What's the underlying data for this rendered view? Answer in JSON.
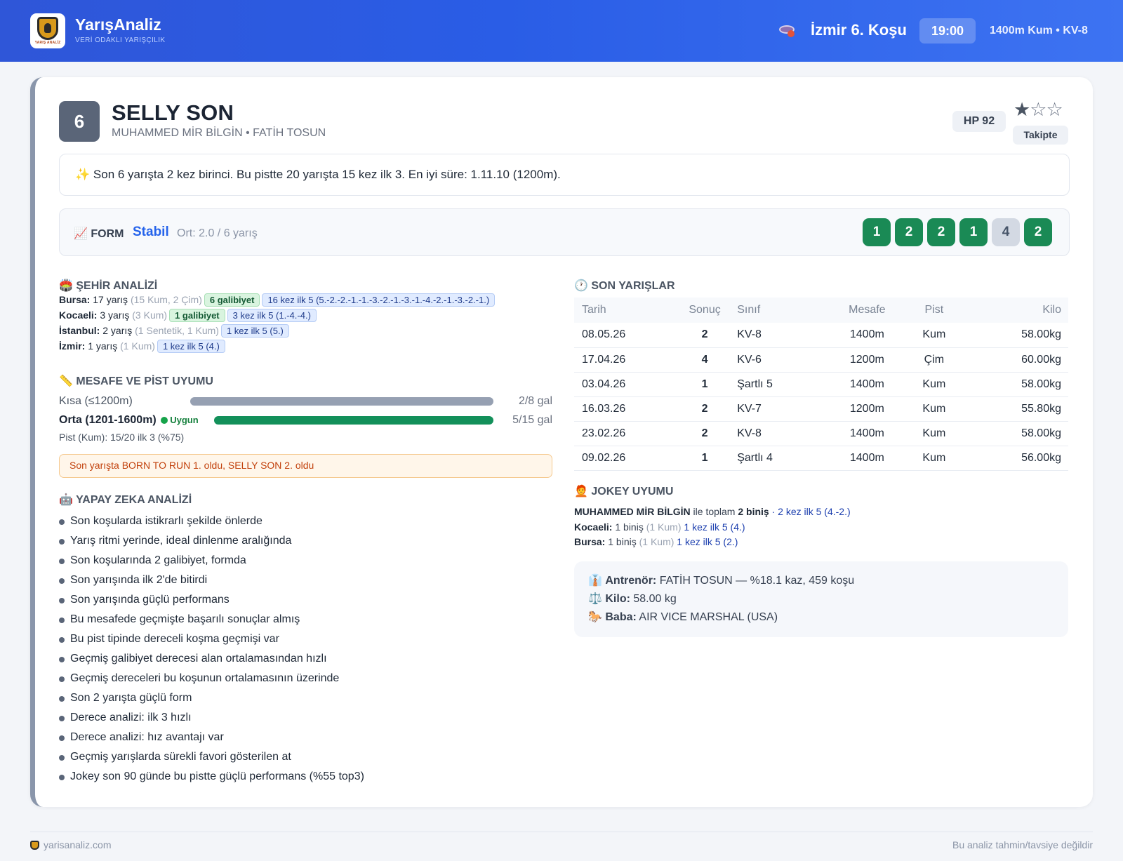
{
  "header": {
    "brand": "YarışAnaliz",
    "tagline": "VERİ ODAKLI YARIŞÇILIK",
    "logo_text": "YARIŞ ANALİZ",
    "race_title": "İzmir 6. Koşu",
    "time": "19:00",
    "race_meta": "1400m Kum • KV-8",
    "colors": {
      "accent": "#2f56d8"
    }
  },
  "horse": {
    "number": "6",
    "name": "SELLY SON",
    "subtitle": "MUHAMMED MİR BİLGİN • FATİH TOSUN",
    "hp": "HP 92",
    "rating_stars": 1,
    "rating_max": 3,
    "follow_label": "Takipte"
  },
  "summary": {
    "icon": "sparkles-icon",
    "text": "Son 6 yarışta 2 kez birinci. Bu pistte 20 yarışta 15 kez ilk 3. En iyi süre: 1.11.10 (1200m)."
  },
  "form": {
    "label": "FORM",
    "status": "Stabil",
    "avg": "Ort: 2.0 / 6 yarış",
    "results": [
      "1",
      "2",
      "2",
      "1",
      "4",
      "2"
    ]
  },
  "city_analysis": {
    "title": "ŞEHİR ANALİZİ",
    "rows": [
      {
        "city": "Bursa:",
        "races": "17 yarış",
        "detail": "(15 Kum, 2 Çim)",
        "wins": "6 galibiyet",
        "top5": "16 kez ilk 5 (5.-2.-2.-1.-1.-3.-2.-1.-3.-1.-4.-2.-1.-3.-2.-1.)"
      },
      {
        "city": "Kocaeli:",
        "races": "3 yarış",
        "detail": "(3 Kum)",
        "wins": "1 galibiyet",
        "top5": "3 kez ilk 5 (1.-4.-4.)"
      },
      {
        "city": "İstanbul:",
        "races": "2 yarış",
        "detail": "(1 Sentetik, 1 Kum)",
        "wins": "",
        "top5": "1 kez ilk 5 (5.)"
      },
      {
        "city": "İzmir:",
        "races": "1 yarış",
        "detail": "(1 Kum)",
        "wins": "",
        "top5": "1 kez ilk 5 (4.)"
      }
    ]
  },
  "distance": {
    "title": "MESAFE VE PİST UYUMU",
    "rows": [
      {
        "label": "Kısa (≤1200m)",
        "badge": "",
        "value": "2/8 gal",
        "fraction": 1.0
      },
      {
        "label": "Orta (1201-1600m)",
        "badge": "Uygun",
        "value": "5/15 gal",
        "fraction": 1.0
      }
    ],
    "pist": "Pist (Kum): 15/20 ilk 3 (%75)",
    "note": "Son yarışta BORN TO RUN 1. oldu, SELLY SON 2. oldu"
  },
  "ai": {
    "title": "YAPAY ZEKA ANALİZİ",
    "items": [
      "Son koşularda istikrarlı şekilde önlerde",
      "Yarış ritmi yerinde, ideal dinlenme aralığında",
      "Son koşularında 2 galibiyet, formda",
      "Son yarışında ilk 2'de bitirdi",
      "Son yarışında güçlü performans",
      "Bu mesafede geçmişte başarılı sonuçlar almış",
      "Bu pist tipinde dereceli koşma geçmişi var",
      "Geçmiş galibiyet derecesi alan ortalamasından hızlı",
      "Geçmiş dereceleri bu koşunun ortalamasının üzerinde",
      "Son 2 yarışta güçlü form",
      "Derece analizi: ilk 3 hızlı",
      "Derece analizi: hız avantajı var",
      "Geçmiş yarışlarda sürekli favori gösterilen at",
      "Jokey son 90 günde bu pistte güçlü performans (%55 top3)"
    ]
  },
  "recent": {
    "title": "SON YARIŞLAR",
    "columns": [
      "Tarih",
      "Sonuç",
      "Sınıf",
      "Mesafe",
      "Pist",
      "Kilo"
    ],
    "rows": [
      [
        "08.05.26",
        "2",
        "KV-8",
        "1400m",
        "Kum",
        "58.00kg"
      ],
      [
        "17.04.26",
        "4",
        "KV-6",
        "1200m",
        "Çim",
        "60.00kg"
      ],
      [
        "03.04.26",
        "1",
        "Şartlı 5",
        "1400m",
        "Kum",
        "58.00kg"
      ],
      [
        "16.03.26",
        "2",
        "KV-7",
        "1200m",
        "Kum",
        "55.80kg"
      ],
      [
        "23.02.26",
        "2",
        "KV-8",
        "1400m",
        "Kum",
        "58.00kg"
      ],
      [
        "09.02.26",
        "1",
        "Şartlı 4",
        "1400m",
        "Kum",
        "56.00kg"
      ]
    ]
  },
  "jockey": {
    "title": "JOKEY UYUMU",
    "name": "MUHAMMED MİR BİLGİN",
    "mid": "ile toplam",
    "total": "2 biniş",
    "top5": "· 2 kez ilk 5 (4.-2.)",
    "rows": [
      {
        "city": "Kocaeli:",
        "rides": "1 biniş",
        "detail": "(1 Kum)",
        "top5": "1 kez ilk 5 (4.)"
      },
      {
        "city": "Bursa:",
        "rides": "1 biniş",
        "detail": "(1 Kum)",
        "top5": "1 kez ilk 5 (2.)"
      }
    ]
  },
  "info": {
    "trainer_label": "Antrenör:",
    "trainer": "FATİH TOSUN — %18.1 kaz, 459 koşu",
    "weight_label": "Kilo:",
    "weight": "58.00 kg",
    "sire_label": "Baba:",
    "sire": "AIR VICE MARSHAL (USA)"
  },
  "footer": {
    "site": "yarisanaliz.com",
    "disclaimer": "Bu analiz tahmin/tavsiye değildir"
  }
}
